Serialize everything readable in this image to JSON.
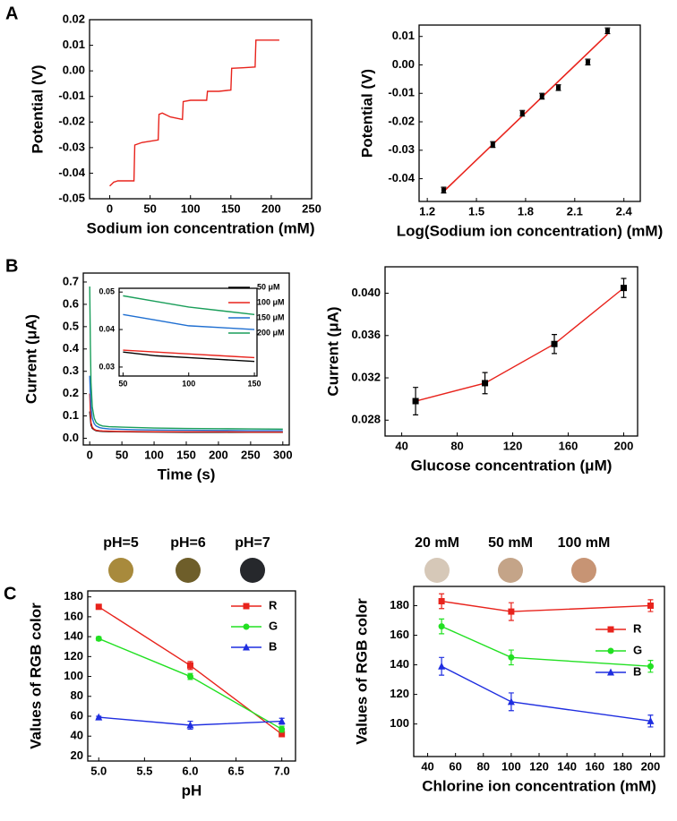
{
  "panel_labels": [
    "A",
    "B",
    "C"
  ],
  "chart_data": [
    {
      "type": "line",
      "xlabel": "Sodium ion concentration (mM)",
      "ylabel": "Potential (V)",
      "xlim": [
        -25,
        250
      ],
      "xticks": [
        0,
        50,
        100,
        150,
        200,
        250
      ],
      "ylim": [
        -0.05,
        0.02
      ],
      "yticks": [
        -0.05,
        -0.04,
        -0.03,
        -0.02,
        -0.01,
        {
          "value": 0,
          "label": "0.00"
        },
        0.01,
        0.02
      ],
      "x": [
        0,
        5,
        10,
        30,
        31,
        40,
        60,
        61,
        65,
        75,
        90,
        91,
        100,
        120,
        121,
        135,
        150,
        151,
        165,
        180,
        181,
        195,
        210
      ],
      "series": [
        {
          "color": "#e8231c",
          "values": [
            -0.045,
            -0.0435,
            -0.043,
            -0.043,
            -0.029,
            -0.028,
            -0.027,
            -0.017,
            -0.0165,
            -0.018,
            -0.019,
            -0.012,
            -0.0115,
            -0.0115,
            -0.008,
            -0.008,
            -0.0075,
            0.001,
            0.0012,
            0.0015,
            0.012,
            0.012,
            0.012
          ]
        }
      ]
    },
    {
      "type": "scatter",
      "xlabel": "Log(Sodium ion  concentration) (mM)",
      "ylabel": "Potential (V)",
      "xlim": [
        1.15,
        2.5
      ],
      "xticks": [
        1.2,
        1.5,
        1.8,
        2.1,
        2.4
      ],
      "ylim": [
        -0.048,
        0.014
      ],
      "yticks": [
        -0.04,
        -0.03,
        -0.02,
        -0.01,
        {
          "value": 0,
          "label": "0.00"
        },
        0.01
      ],
      "series": [
        {
          "color": "#000000",
          "marker": "square",
          "x": [
            1.3,
            1.6,
            1.78,
            1.9,
            2.0,
            2.18,
            2.3
          ],
          "values": [
            -0.044,
            -0.028,
            -0.017,
            -0.011,
            -0.008,
            0.001,
            0.012
          ],
          "errors": [
            0.001,
            0.001,
            0.001,
            0.001,
            0.001,
            0.001,
            0.001
          ]
        }
      ],
      "fit": {
        "color": "#e8231c",
        "x": [
          1.3,
          2.3
        ],
        "y": [
          -0.0445,
          0.0108
        ]
      }
    },
    {
      "type": "line",
      "xlabel": "Time (s)",
      "ylabel": "Current (μA)",
      "xlim": [
        -10,
        310
      ],
      "xticks": [
        0,
        50,
        100,
        150,
        200,
        250,
        300
      ],
      "ylim": [
        -0.03,
        0.74
      ],
      "yticks": [
        {
          "value": 0,
          "label": "0.0"
        },
        0.1,
        0.2,
        0.3,
        0.4,
        0.5,
        0.6,
        0.7
      ],
      "x": [
        0,
        1,
        2,
        4,
        7,
        10,
        15,
        20,
        30,
        50,
        75,
        100,
        150,
        200,
        250,
        300
      ],
      "series": [
        {
          "name": "50 μM",
          "color": "#000000",
          "values": [
            0.12,
            0.09,
            0.06,
            0.045,
            0.038,
            0.034,
            0.032,
            0.031,
            0.03,
            0.0295,
            0.0285,
            0.028,
            0.027,
            0.027,
            0.027,
            0.027
          ]
        },
        {
          "name": "100 μM",
          "color": "#e8231c",
          "values": [
            0.2,
            0.12,
            0.07,
            0.05,
            0.04,
            0.036,
            0.034,
            0.033,
            0.032,
            0.0305,
            0.03,
            0.0295,
            0.029,
            0.029,
            0.028,
            0.028
          ]
        },
        {
          "name": "150 μM",
          "color": "#1f6fd1",
          "values": [
            0.28,
            0.2,
            0.14,
            0.09,
            0.065,
            0.055,
            0.048,
            0.045,
            0.042,
            0.04,
            0.038,
            0.037,
            0.036,
            0.035,
            0.034,
            0.034
          ]
        },
        {
          "name": "200 μM",
          "color": "#1a9e5a",
          "values": [
            0.68,
            0.42,
            0.25,
            0.14,
            0.09,
            0.07,
            0.06,
            0.055,
            0.052,
            0.05,
            0.048,
            0.046,
            0.044,
            0.043,
            0.042,
            0.041
          ]
        }
      ],
      "legend": "top-right",
      "inset": {
        "type": "line",
        "xlim": [
          47,
          152
        ],
        "xticks": [
          50,
          100,
          150
        ],
        "ylim": [
          0.0276,
          0.051
        ],
        "yticks": [
          0.03,
          0.04,
          0.05
        ],
        "x": [
          50,
          75,
          100,
          125,
          150
        ],
        "series": [
          {
            "values": [
              0.034,
              0.033,
              0.0325,
              0.032,
              0.0315
            ]
          },
          {
            "values": [
              0.0345,
              0.034,
              0.0335,
              0.033,
              0.0325
            ]
          },
          {
            "values": [
              0.044,
              0.0425,
              0.041,
              0.0405,
              0.04
            ]
          },
          {
            "values": [
              0.049,
              0.0475,
              0.046,
              0.045,
              0.044
            ]
          }
        ]
      }
    },
    {
      "type": "line",
      "xlabel": "Glucose concentration (μM)",
      "ylabel": "Current (μA)",
      "xlim": [
        28,
        210
      ],
      "xticks": [
        40,
        80,
        120,
        160,
        200
      ],
      "ylim": [
        0.0265,
        0.0425
      ],
      "yticks": [
        0.028,
        0.032,
        0.036,
        {
          "value": 0.04,
          "label": "0.040"
        }
      ],
      "x": [
        50,
        100,
        150,
        200
      ],
      "series": [
        {
          "color": "#e8231c",
          "marker": "square",
          "markerColor": "#000000",
          "values": [
            0.0298,
            0.0315,
            0.0352,
            0.0405
          ],
          "errors": [
            0.0013,
            0.001,
            0.0009,
            0.0009
          ]
        }
      ]
    },
    {
      "type": "line",
      "xlabel": "pH",
      "ylabel": "Values of RGB color",
      "xlim": [
        4.88,
        7.15
      ],
      "xticks": [
        {
          "value": 5,
          "label": "5.0"
        },
        5.5,
        {
          "value": 6,
          "label": "6.0"
        },
        6.5,
        {
          "value": 7,
          "label": "7.0"
        }
      ],
      "ylim": [
        15,
        186
      ],
      "yticks": [
        20,
        40,
        60,
        80,
        100,
        120,
        140,
        160,
        180
      ],
      "x": [
        5,
        6,
        7
      ],
      "series": [
        {
          "name": "R",
          "color": "#e8231c",
          "marker": "square",
          "values": [
            170,
            111,
            42
          ],
          "errors": [
            2,
            4,
            2
          ]
        },
        {
          "name": "G",
          "color": "#22e022",
          "marker": "circle",
          "values": [
            138,
            100,
            47
          ],
          "errors": [
            2,
            3,
            3
          ]
        },
        {
          "name": "B",
          "color": "#1f2ee0",
          "marker": "triangle",
          "values": [
            59,
            51,
            55
          ],
          "errors": [
            1,
            4,
            3
          ]
        }
      ],
      "legend": "top-right",
      "swatches": [
        {
          "label": "pH=5",
          "color": "#a88a3c"
        },
        {
          "label": "pH=6",
          "color": "#6e5e2a"
        },
        {
          "label": "pH=7",
          "color": "#26282c"
        }
      ]
    },
    {
      "type": "line",
      "xlabel": "Chlorine ion concentration (mM)",
      "ylabel": "Values of RGB color",
      "xlim": [
        30,
        210
      ],
      "xticks": [
        40,
        60,
        80,
        100,
        120,
        140,
        160,
        180,
        200
      ],
      "ylim": [
        78,
        193
      ],
      "yticks": [
        100,
        120,
        140,
        160,
        180
      ],
      "x": [
        50,
        100,
        200
      ],
      "series": [
        {
          "name": "R",
          "color": "#e8231c",
          "marker": "square",
          "values": [
            183,
            176,
            180
          ],
          "errors": [
            5,
            6,
            4
          ]
        },
        {
          "name": "G",
          "color": "#22e022",
          "marker": "circle",
          "values": [
            166,
            145,
            139
          ],
          "errors": [
            5,
            5,
            4
          ]
        },
        {
          "name": "B",
          "color": "#1f2ee0",
          "marker": "triangle",
          "values": [
            139,
            115,
            102
          ],
          "errors": [
            6,
            6,
            4
          ]
        }
      ],
      "legend": "top-right",
      "swatches": [
        {
          "label": "20 mM",
          "color": "#d6c8b8"
        },
        {
          "label": "50 mM",
          "color": "#c4a488"
        },
        {
          "label": "100 mM",
          "color": "#c79474"
        }
      ]
    }
  ]
}
